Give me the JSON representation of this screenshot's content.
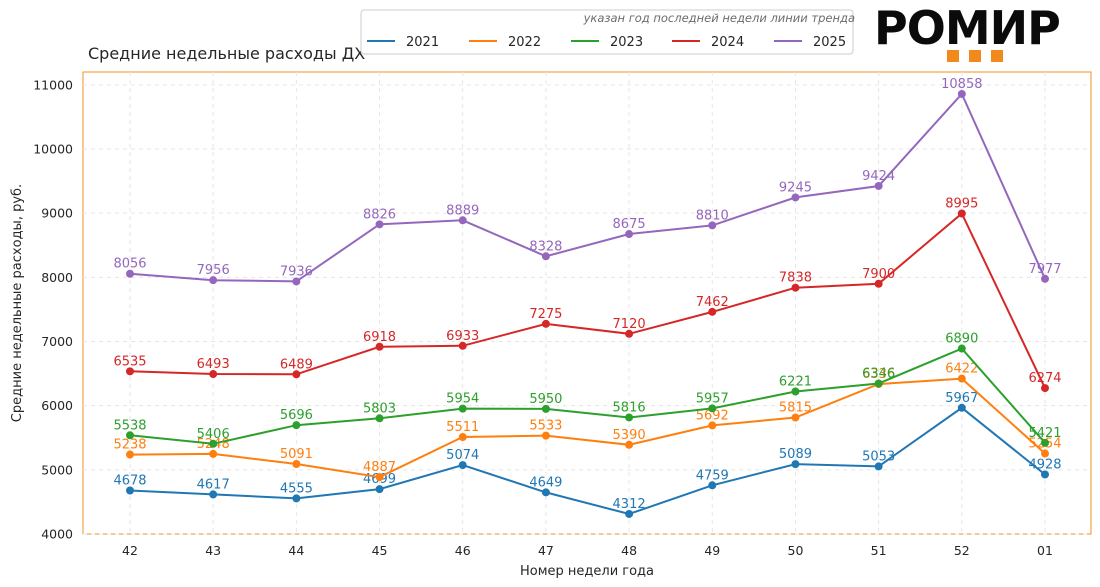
{
  "brand": {
    "name": "РОМИР",
    "accent_color": "#f08a1c"
  },
  "chart_data": {
    "type": "line",
    "title": "Средние недельные расходы ДХ",
    "note": "указан год последней недели линии тренда",
    "xlabel": "Номер недели года",
    "ylabel": "Средние недельные расходы, руб.",
    "categories": [
      "42",
      "43",
      "44",
      "45",
      "46",
      "47",
      "48",
      "49",
      "50",
      "51",
      "52",
      "01"
    ],
    "ylim": [
      4000,
      11200
    ],
    "yticks": [
      4000,
      5000,
      6000,
      7000,
      8000,
      9000,
      10000,
      11000
    ],
    "grid": true,
    "legend_position": "top",
    "series": [
      {
        "name": "2021",
        "color": "#1f77b4",
        "values": [
          4678,
          4617,
          4555,
          4699,
          5074,
          4649,
          4312,
          4759,
          5089,
          5053,
          5967,
          4928
        ]
      },
      {
        "name": "2022",
        "color": "#ff7f0e",
        "values": [
          5238,
          5248,
          5091,
          4887,
          5511,
          5533,
          5390,
          5692,
          5815,
          6336,
          6422,
          5254
        ]
      },
      {
        "name": "2023",
        "color": "#2ca02c",
        "values": [
          5538,
          5406,
          5696,
          5803,
          5954,
          5950,
          5816,
          5957,
          6221,
          6346,
          6890,
          5421
        ]
      },
      {
        "name": "2024",
        "color": "#d62728",
        "values": [
          6535,
          6493,
          6489,
          6918,
          6933,
          7275,
          7120,
          7462,
          7838,
          7900,
          8995,
          6274
        ]
      },
      {
        "name": "2025",
        "color": "#9467bd",
        "values": [
          8056,
          7956,
          7936,
          8826,
          8889,
          8328,
          8675,
          8810,
          9245,
          9424,
          10858,
          7977
        ]
      }
    ]
  }
}
